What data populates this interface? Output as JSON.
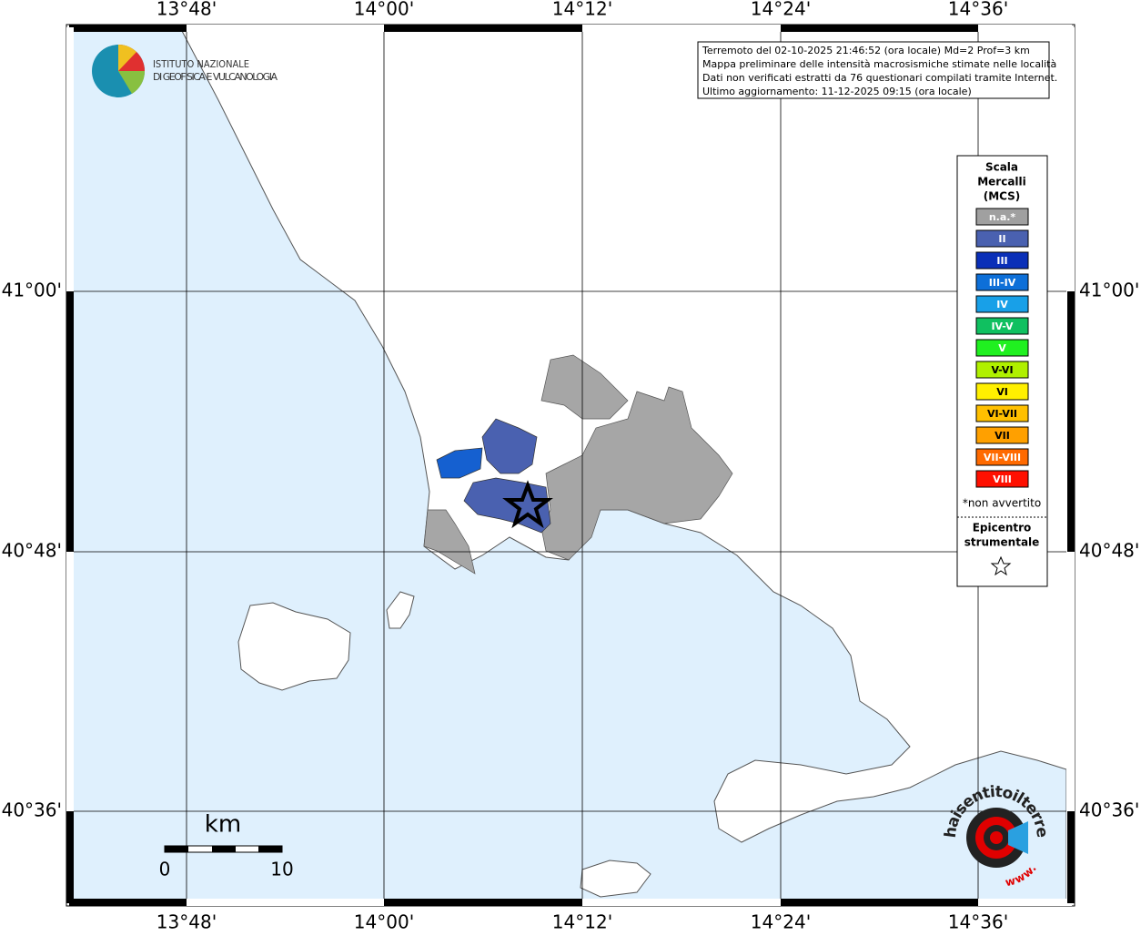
{
  "map": {
    "lon_labels": [
      "13°48'",
      "14°00'",
      "14°12'",
      "14°24'",
      "14°36'"
    ],
    "lat_labels": [
      "41°00'",
      "40°48'",
      "40°36'"
    ],
    "logo": [
      "ISTITUTO NAZIONALE",
      "DI GEOFISICA E VULCANOLOGIA"
    ],
    "info": [
      "Terremoto del 02-10-2025 21:46:52 (ora locale) Md=2 Prof=3 km",
      "Mappa preliminare delle intensità macrosismiche stimate nelle località",
      "Dati non verificati estratti da 76 questionari compilati tramite Internet.",
      "Ultimo aggiornamento: 11-12-2025 09:15 (ora locale)"
    ],
    "legend": {
      "title": [
        "Scala",
        "Mercalli",
        "(MCS)"
      ],
      "items": [
        {
          "label": "n.a.*",
          "color": "#a0a0a0"
        },
        {
          "label": "II",
          "color": "#4a61b0"
        },
        {
          "label": "III",
          "color": "#0a2fb8"
        },
        {
          "label": "III-IV",
          "color": "#0d6fd8"
        },
        {
          "label": "IV",
          "color": "#18a0e8"
        },
        {
          "label": "IV-V",
          "color": "#10c060"
        },
        {
          "label": "V",
          "color": "#20f020"
        },
        {
          "label": "V-VI",
          "color": "#b0f000"
        },
        {
          "label": "VI",
          "color": "#fff000"
        },
        {
          "label": "VI-VII",
          "color": "#ffc000"
        },
        {
          "label": "VII",
          "color": "#ffa000"
        },
        {
          "label": "VII-VIII",
          "color": "#ff6a00"
        },
        {
          "label": "VIII",
          "color": "#ff1000"
        }
      ],
      "note": "*non avvertito",
      "epicenter": [
        "Epicentro",
        "strumentale"
      ]
    },
    "scale": {
      "unit": "km",
      "labels": [
        "0",
        "10"
      ]
    },
    "watermark": {
      "name": "haisentitoilterremoto.it",
      "prefix": "www."
    }
  }
}
